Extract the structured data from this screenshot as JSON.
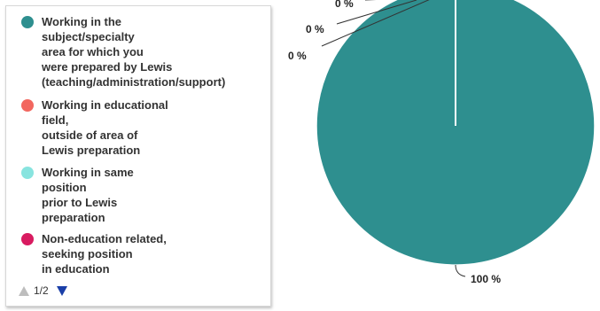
{
  "chart_data": {
    "type": "pie",
    "title": "",
    "legend_position": "left",
    "series": [
      {
        "name": "Working in the\nsubject/specialty\narea for which you\nwere prepared by Lewis\n(teaching/administration/support)",
        "value": 100,
        "label": "100 %",
        "color": "#2e8f8f"
      },
      {
        "name": "Working in educational\nfield,\noutside of area of\nLewis preparation",
        "value": 0,
        "label": "0 %",
        "color": "#f2675f"
      },
      {
        "name": "Working in same\nposition\nprior to Lewis\npreparation",
        "value": 0,
        "label": "0 %",
        "color": "#88e4df"
      },
      {
        "name": "Non-education related,\nseeking position\nin education",
        "value": 0,
        "label": "0 %",
        "color": "#d81b60"
      }
    ]
  },
  "legend": {
    "pager_text": "1/2"
  }
}
